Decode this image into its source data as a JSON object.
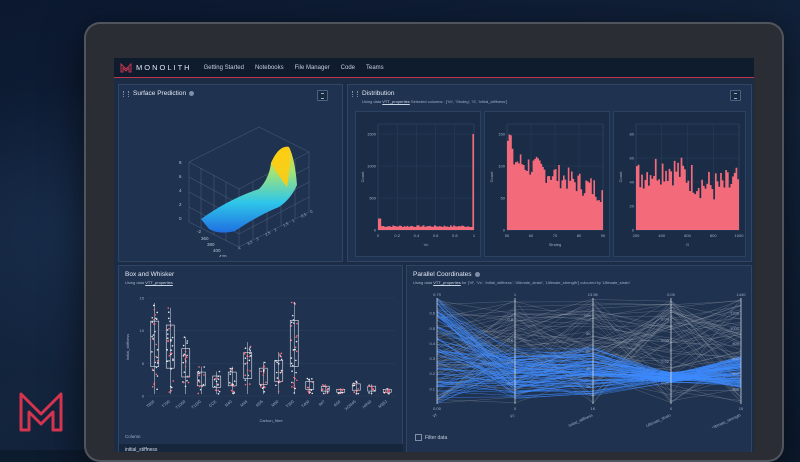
{
  "app": {
    "brand": "MONOLITH",
    "nav": [
      "Getting Started",
      "Notebooks",
      "File Manager",
      "Code",
      "Teams"
    ]
  },
  "surface": {
    "title": "Surface Prediction",
    "z_ticks": [
      "8",
      "6",
      "4",
      "2",
      "0"
    ],
    "y_ticks": [
      "-2",
      "360",
      "380",
      "400",
      "420",
      "440"
    ],
    "x_ticks": [
      "4",
      "3.5",
      "3",
      "2.5",
      "2",
      "1.5",
      "1",
      "0.5",
      "0"
    ]
  },
  "distribution": {
    "title": "Distribution",
    "subtitle_pre": "Using data ",
    "subtitle_link": "VTT_properties",
    "subtitle_post": " Selected columns : ['Vc', 'Sindeg', 'G', 'initial_stiffness']",
    "charts": [
      {
        "xlabel": "Vc",
        "ylabel": "Count",
        "y_ticks": [
          "1500",
          "1000",
          "500",
          "0"
        ],
        "x_ticks": [
          "0",
          "0.2",
          "0.4",
          "0.6",
          "0.8",
          "1"
        ]
      },
      {
        "xlabel": "Sindeg",
        "ylabel": "Count",
        "y_ticks": [
          "150",
          "100",
          "50",
          "0"
        ],
        "x_ticks": [
          "50",
          "60",
          "70",
          "80",
          "90"
        ]
      },
      {
        "xlabel": "G",
        "ylabel": "Count",
        "y_ticks": [
          "80",
          "60",
          "40",
          "20",
          "0"
        ],
        "x_ticks": [
          "200",
          "400",
          "600",
          "800",
          "1000"
        ]
      }
    ]
  },
  "box": {
    "title": "Box and Whisker",
    "subtitle_pre": "Using data ",
    "subtitle_link": "VTT_properties",
    "ylabel": "Initial_stiffness",
    "xlabel": "Carbon_fibre",
    "y_ticks": [
      "15",
      "10",
      "5",
      "0"
    ],
    "categories": [
      "T800",
      "T700",
      "T1000",
      "T1100",
      "CCE",
      "M40",
      "M46",
      "M55",
      "M60",
      "T300",
      "T400",
      "IM7",
      "AS4",
      "XCM45",
      "HR40",
      "M35J"
    ],
    "column_label": "Column",
    "column_value": "initial_stiffness"
  },
  "parallel": {
    "title": "Parallel Coordinates",
    "subtitle_pre": "Using data ",
    "subtitle_link": "VTT_properties",
    "subtitle_post": " for ['Vf', 'Vc', 'Initial_stiffness', 'Ultimate_strain', 'Ultimate_strength'] coloured by 'Ultimate_strain'",
    "axes": [
      {
        "name": "Vf",
        "top": "0.79",
        "bottom": "0.05",
        "ticks": [
          "0.6",
          "0.5",
          "0.4",
          "0.3",
          "0.2",
          "0.1"
        ]
      },
      {
        "name": "Vc",
        "top": "1",
        "bottom": "0",
        "ticks": [
          "0.8",
          "0.6",
          "0.4",
          "0.2"
        ]
      },
      {
        "name": "Initial_stiffness",
        "top": "13.5K",
        "bottom": "1K",
        "ticks": [
          "10K",
          "8K",
          "6K",
          "4K",
          "2K"
        ]
      },
      {
        "name": "Ultimate_strain",
        "top": "0.05",
        "bottom": "0",
        "ticks": [
          "0.04",
          "0.03",
          "0.02",
          "0.01"
        ]
      },
      {
        "name": "Ultimate_strength",
        "top": "1440",
        "bottom": "10",
        "ticks": [
          "1200",
          "1000",
          "800",
          "600",
          "400",
          "200"
        ]
      }
    ],
    "filter_label": "Filter data"
  },
  "colors": {
    "accent": "#c1354c",
    "bar": "#f36b7b",
    "line_blue": "#3d8bff",
    "line_gray": "#9aa3ae"
  }
}
